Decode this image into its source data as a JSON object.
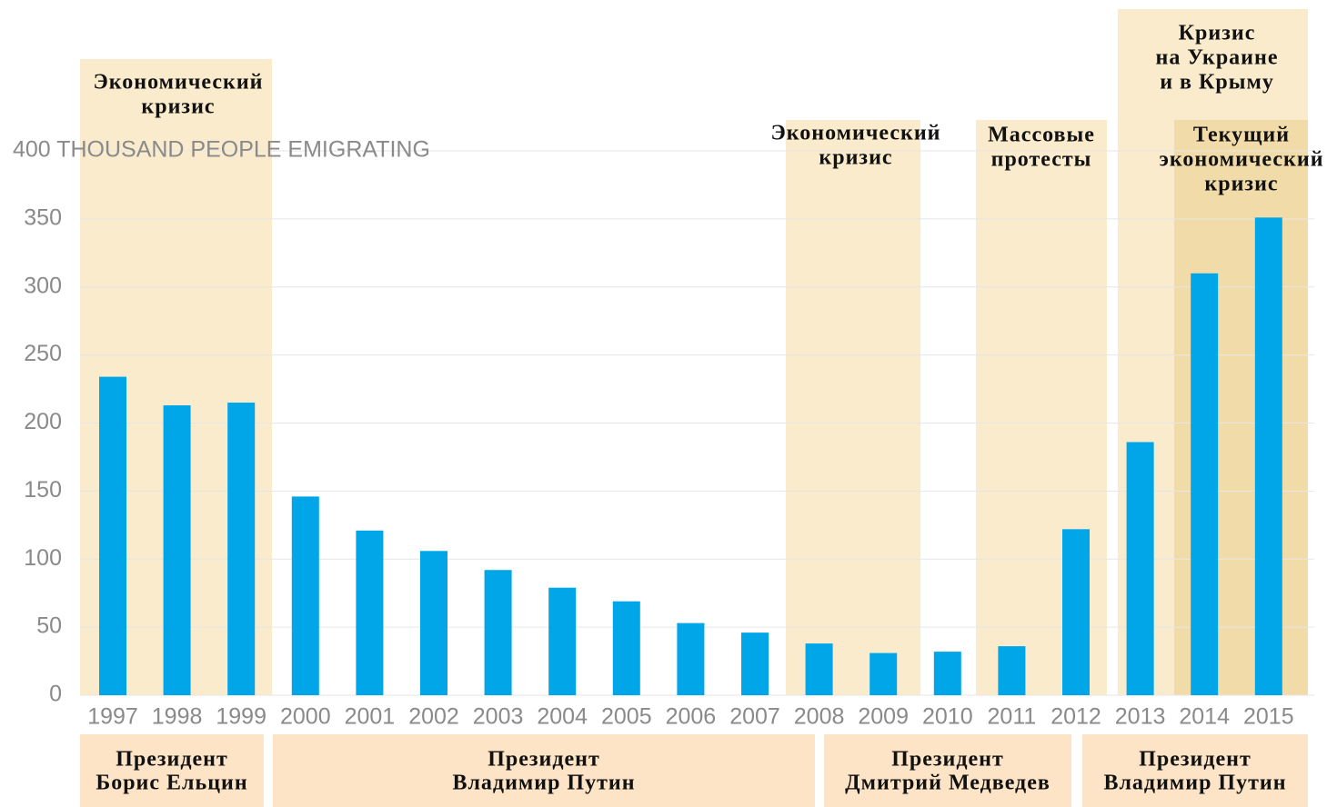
{
  "chart_data": {
    "type": "bar",
    "categories": [
      "1997",
      "1998",
      "1999",
      "2000",
      "2001",
      "2002",
      "2003",
      "2004",
      "2005",
      "2006",
      "2007",
      "2008",
      "2009",
      "2010",
      "2011",
      "2012",
      "2013",
      "2014",
      "2015"
    ],
    "values": [
      234,
      213,
      215,
      146,
      121,
      106,
      92,
      79,
      69,
      53,
      46,
      38,
      31,
      32,
      36,
      122,
      186,
      310,
      351
    ],
    "color": "#00a6e8",
    "ylim": [
      0,
      400
    ],
    "yticks": [
      0,
      50,
      100,
      150,
      200,
      250,
      300,
      350,
      {
        "value": 400,
        "label": "400 THOUSAND PEOPLE EMIGRATING"
      }
    ],
    "grid": true,
    "annotations": [
      {
        "lines": [
          "Экономический",
          "кризис"
        ]
      },
      {
        "lines": [
          "Экономический",
          "кризис"
        ]
      },
      {
        "lines": [
          "Массовые",
          "протесты"
        ]
      },
      {
        "lines": [
          "Кризис",
          "на Украине",
          "и в Крыму"
        ]
      },
      {
        "lines": [
          "Текущий",
          "экономический",
          "кризис"
        ]
      }
    ],
    "presidents": [
      {
        "lines": [
          "Президент",
          "Борис Ельцин"
        ]
      },
      {
        "lines": [
          "Президент",
          "Владимир Путин"
        ]
      },
      {
        "lines": [
          "Президент",
          "Дмитрий Медведев"
        ]
      },
      {
        "lines": [
          "Президент",
          "Владимир Путин"
        ]
      }
    ]
  }
}
